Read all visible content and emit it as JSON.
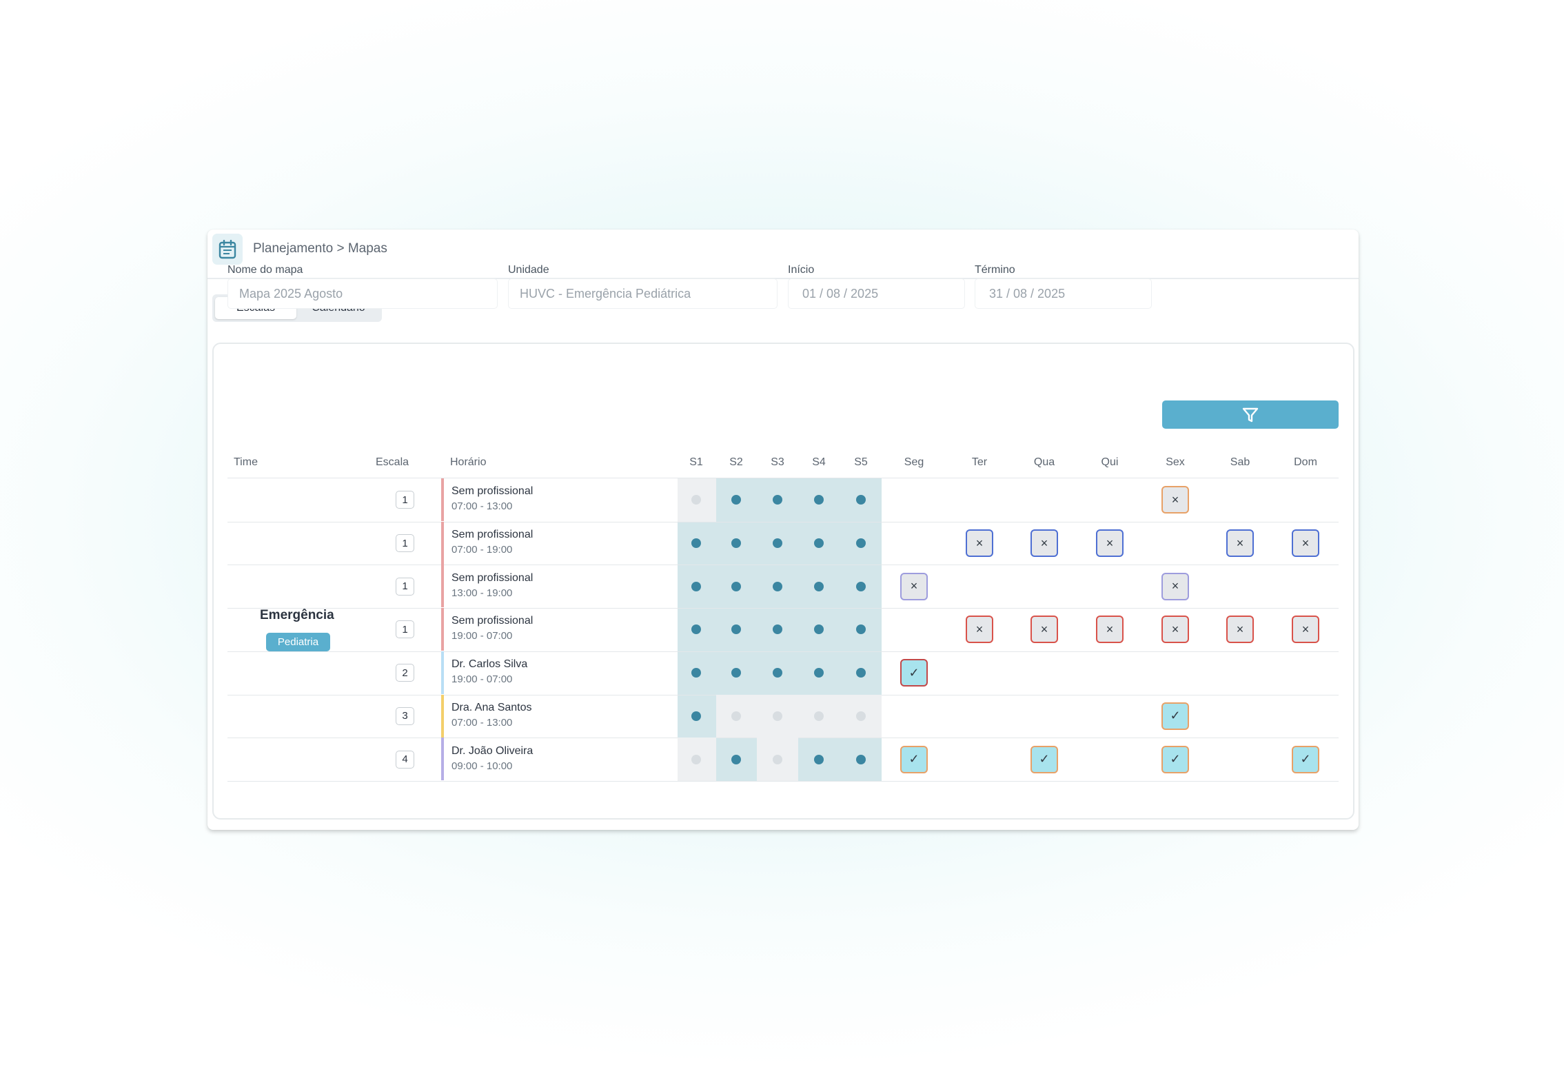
{
  "breadcrumb": "Planejamento > Mapas",
  "icons": {
    "header": "calendar-icon",
    "filter": "filter-icon"
  },
  "tabs": [
    {
      "label": "Escalas",
      "active": true
    },
    {
      "label": "Calendário",
      "active": false
    }
  ],
  "filters": {
    "nome": {
      "label": "Nome do mapa",
      "value": "Mapa 2025 Agosto"
    },
    "unidade": {
      "label": "Unidade",
      "value": "HUVC - Emergência Pediátrica"
    },
    "inicio": {
      "label": "Início",
      "value": "01 / 08 / 2025"
    },
    "termino": {
      "label": "Término",
      "value": "31 / 08 / 2025"
    }
  },
  "table": {
    "headers": {
      "time": "Time",
      "escala": "Escala",
      "horario": "Horário",
      "weeks": [
        "S1",
        "S2",
        "S3",
        "S4",
        "S5"
      ],
      "days": [
        "Seg",
        "Ter",
        "Qua",
        "Qui",
        "Sex",
        "Sab",
        "Dom"
      ]
    },
    "team": {
      "name": "Emergência",
      "badge": "Pediatria"
    },
    "rows": [
      {
        "escala": "1",
        "name": "Sem profissional",
        "time": "07:00 - 13:00",
        "bar_color": "#e9a3a3",
        "weeks": [
          false,
          true,
          true,
          true,
          true
        ],
        "days": [
          null,
          null,
          null,
          null,
          {
            "type": "x",
            "color": "orange"
          },
          null,
          null
        ]
      },
      {
        "escala": "1",
        "name": "Sem profissional",
        "time": "07:00 - 19:00",
        "bar_color": "#e9a3a3",
        "weeks": [
          true,
          true,
          true,
          true,
          true
        ],
        "days": [
          null,
          {
            "type": "x",
            "color": "blue"
          },
          {
            "type": "x",
            "color": "blue"
          },
          {
            "type": "x",
            "color": "blue"
          },
          null,
          {
            "type": "x",
            "color": "blue"
          },
          {
            "type": "x",
            "color": "blue"
          }
        ]
      },
      {
        "escala": "1",
        "name": "Sem profissional",
        "time": "13:00 - 19:00",
        "bar_color": "#e9a3a3",
        "weeks": [
          true,
          true,
          true,
          true,
          true
        ],
        "days": [
          {
            "type": "x",
            "color": "lav"
          },
          null,
          null,
          null,
          {
            "type": "x",
            "color": "lav"
          },
          null,
          null
        ]
      },
      {
        "escala": "1",
        "name": "Sem profissional",
        "time": "19:00 - 07:00",
        "bar_color": "#e9a3a3",
        "weeks": [
          true,
          true,
          true,
          true,
          true
        ],
        "days": [
          null,
          {
            "type": "x",
            "color": "red"
          },
          {
            "type": "x",
            "color": "red"
          },
          {
            "type": "x",
            "color": "red"
          },
          {
            "type": "x",
            "color": "red"
          },
          {
            "type": "x",
            "color": "red"
          },
          {
            "type": "x",
            "color": "red"
          }
        ]
      },
      {
        "escala": "2",
        "name": "Dr. Carlos Silva",
        "time": "19:00 - 07:00",
        "bar_color": "#b9def5",
        "weeks": [
          true,
          true,
          true,
          true,
          true
        ],
        "days": [
          {
            "type": "check",
            "color": "darkred"
          },
          null,
          null,
          null,
          null,
          null,
          null
        ]
      },
      {
        "escala": "3",
        "name": "Dra. Ana Santos",
        "time": "07:00 - 13:00",
        "bar_color": "#f3cf6b",
        "weeks": [
          true,
          false,
          false,
          false,
          false
        ],
        "days": [
          null,
          null,
          null,
          null,
          {
            "type": "check",
            "color": "orange"
          },
          null,
          null
        ]
      },
      {
        "escala": "4",
        "name": "Dr. João Oliveira",
        "time": "09:00 - 10:00",
        "bar_color": "#b6aee6",
        "weeks": [
          false,
          true,
          false,
          true,
          true
        ],
        "days": [
          {
            "type": "check",
            "color": "orange"
          },
          null,
          {
            "type": "check",
            "color": "orange"
          },
          null,
          {
            "type": "check",
            "color": "orange"
          },
          null,
          {
            "type": "check",
            "color": "orange"
          }
        ]
      }
    ]
  }
}
